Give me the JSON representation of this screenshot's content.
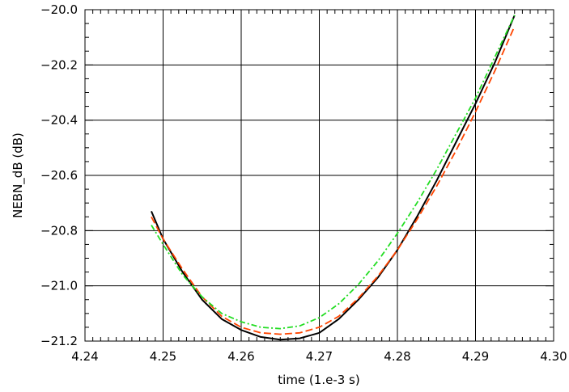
{
  "chart_data": {
    "type": "line",
    "title": "",
    "xlabel": "time (1.e-3 s)",
    "ylabel": "NEBN_dB (dB)",
    "xlim": [
      4.24,
      4.3
    ],
    "ylim": [
      -21.2,
      -20.0
    ],
    "grid": true,
    "x_ticks": [
      4.24,
      4.25,
      4.26,
      4.27,
      4.28,
      4.29,
      4.3
    ],
    "x_tick_labels": [
      "4.24",
      "4.25",
      "4.26",
      "4.27",
      "4.28",
      "4.29",
      "4.30"
    ],
    "y_ticks": [
      -21.2,
      -21.0,
      -20.8,
      -20.6,
      -20.4,
      -20.2,
      -20.0
    ],
    "y_tick_labels": [
      "−21.2",
      "−21.0",
      "−20.8",
      "−20.6",
      "−20.4",
      "−20.2",
      "−20.0"
    ],
    "series": [
      {
        "color": "#000000",
        "style": "solid",
        "x": [
          4.2485,
          4.25,
          4.2525,
          4.255,
          4.2575,
          4.26,
          4.2625,
          4.265,
          4.2675,
          4.27,
          4.2725,
          4.275,
          4.2775,
          4.28,
          4.2825,
          4.285,
          4.2875,
          4.29,
          4.2925,
          4.295
        ],
        "values": [
          -20.73,
          -20.83,
          -20.95,
          -21.05,
          -21.12,
          -21.16,
          -21.185,
          -21.195,
          -21.19,
          -21.17,
          -21.12,
          -21.05,
          -20.97,
          -20.87,
          -20.75,
          -20.62,
          -20.48,
          -20.34,
          -20.19,
          -20.02
        ]
      },
      {
        "color": "#ff4500",
        "style": "dashed",
        "x": [
          4.2485,
          4.25,
          4.2525,
          4.255,
          4.2575,
          4.26,
          4.2625,
          4.265,
          4.2675,
          4.27,
          4.2725,
          4.275,
          4.2775,
          4.28,
          4.2825,
          4.285,
          4.2875,
          4.29,
          4.2925,
          4.295
        ],
        "values": [
          -20.75,
          -20.83,
          -20.94,
          -21.04,
          -21.11,
          -21.15,
          -21.17,
          -21.175,
          -21.17,
          -21.15,
          -21.11,
          -21.045,
          -20.965,
          -20.87,
          -20.76,
          -20.64,
          -20.51,
          -20.37,
          -20.22,
          -20.06
        ]
      },
      {
        "color": "#22dd22",
        "style": "dash-dot",
        "x": [
          4.2485,
          4.25,
          4.2525,
          4.255,
          4.2575,
          4.26,
          4.2625,
          4.265,
          4.2675,
          4.27,
          4.2725,
          4.275,
          4.2775,
          4.28,
          4.2825,
          4.285,
          4.2875,
          4.29,
          4.2925,
          4.295
        ],
        "values": [
          -20.78,
          -20.85,
          -20.96,
          -21.04,
          -21.1,
          -21.13,
          -21.15,
          -21.155,
          -21.145,
          -21.115,
          -21.065,
          -20.995,
          -20.91,
          -20.81,
          -20.7,
          -20.58,
          -20.45,
          -20.32,
          -20.17,
          -20.02
        ]
      }
    ]
  }
}
